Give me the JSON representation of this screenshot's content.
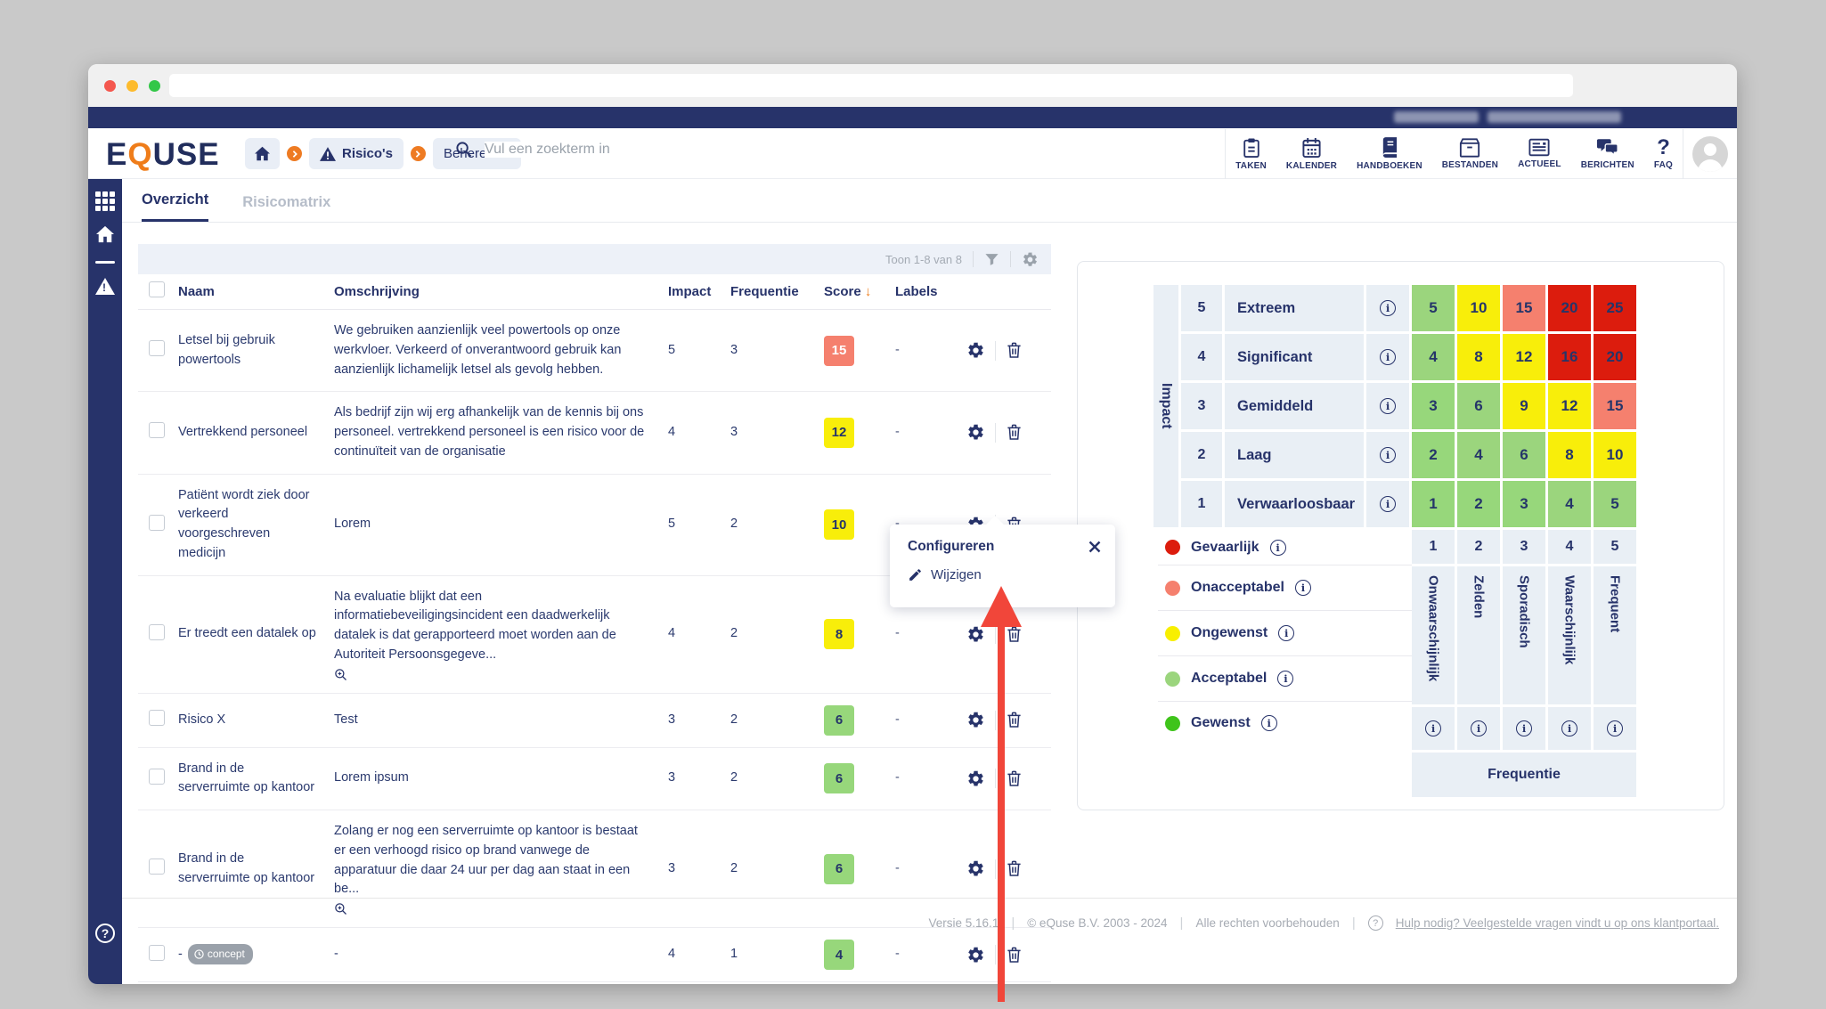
{
  "colors": {
    "navy": "#27336a",
    "orange": "#ee7b23",
    "arrow_red": "#f1463a",
    "score_salmon": "#f5806e",
    "score_yellow": "#f8ee0a",
    "score_green": "#97d77b",
    "matrix_green": "#3fc41b",
    "matrix_lgreen": "#9bd57d",
    "matrix_yellow": "#f8ef00",
    "matrix_salmon": "#f5806e",
    "matrix_red": "#dc1c0d"
  },
  "browser": {
    "lights": [
      "#f4574e",
      "#fdbb2d",
      "#33c748"
    ]
  },
  "header": {
    "logo_pre": "E",
    "logo_q": "Q",
    "logo_post": "USE",
    "breadcrumb": {
      "risicos": "Risico's",
      "beheren": "Beheren"
    },
    "search_placeholder": "Vul een zoekterm in",
    "nav_items": [
      {
        "label": "TAKEN"
      },
      {
        "label": "KALENDER"
      },
      {
        "label": "HANDBOEKEN"
      },
      {
        "label": "BESTANDEN"
      },
      {
        "label": "ACTUEEL"
      },
      {
        "label": "BERICHTEN"
      },
      {
        "label": "FAQ"
      }
    ]
  },
  "tabs": {
    "overzicht": "Overzicht",
    "risicomatrix": "Risicomatrix"
  },
  "table": {
    "toolbar_count": "Toon 1-8 van 8",
    "columns": {
      "naam": "Naam",
      "omschrijving": "Omschrijving",
      "impact": "Impact",
      "frequentie": "Frequentie",
      "score": "Score",
      "sort_arrow": "↓",
      "labels": "Labels"
    },
    "rows": [
      {
        "name": "Letsel bij gebruik powertools",
        "description": "We gebruiken aanzienlijk veel powertools op onze werkvloer. Verkeerd of onverantwoord gebruik kan aanzienlijk lichamelijk letsel als gevolg hebben.",
        "impact": "5",
        "frequency": "3",
        "score": "15",
        "score_level": "salmon",
        "labels": "-"
      },
      {
        "name": "Vertrekkend personeel",
        "description": "Als bedrijf zijn wij erg afhankelijk van de kennis bij ons personeel. vertrekkend personeel is een risico voor de continuïteit van de organisatie",
        "impact": "4",
        "frequency": "3",
        "score": "12",
        "score_level": "yellow",
        "labels": "-"
      },
      {
        "name": "Patiënt wordt ziek door verkeerd voorgeschreven medicijn",
        "description": "Lorem",
        "impact": "5",
        "frequency": "2",
        "score": "10",
        "score_level": "yellow",
        "labels": "-"
      },
      {
        "name": "Er treedt een datalek op",
        "description": "Na evaluatie blijkt dat een informatiebeveiligingsincident een daadwerkelijk datalek is dat gerapporteerd moet worden aan de Autoriteit Persoonsgegeve...",
        "truncated": true,
        "impact": "4",
        "frequency": "2",
        "score": "8",
        "score_level": "yellow",
        "labels": "-"
      },
      {
        "name": "Risico X",
        "description": "Test",
        "impact": "3",
        "frequency": "2",
        "score": "6",
        "score_level": "green",
        "labels": "-"
      },
      {
        "name": "Brand in de serverruimte op kantoor",
        "description": "Lorem ipsum",
        "impact": "3",
        "frequency": "2",
        "score": "6",
        "score_level": "green",
        "labels": "-"
      },
      {
        "name": "Brand in de serverruimte op kantoor",
        "description": "Zolang er nog een serverruimte op kantoor is bestaat er een verhoogd risico op brand vanwege de apparatuur die daar 24 uur per dag aan staat in een be...",
        "truncated": true,
        "impact": "3",
        "frequency": "2",
        "score": "6",
        "score_level": "green",
        "labels": "-"
      },
      {
        "name": "-",
        "badge": "concept",
        "description": "-",
        "impact": "4",
        "frequency": "1",
        "score": "4",
        "score_level": "green",
        "labels": "-"
      }
    ]
  },
  "popup": {
    "title": "Configureren",
    "action": "Wijzigen"
  },
  "matrix": {
    "impact_axis": "Impact",
    "frequency_axis": "Frequentie",
    "impact_levels": [
      {
        "num": "5",
        "label": "Extreem"
      },
      {
        "num": "4",
        "label": "Significant"
      },
      {
        "num": "3",
        "label": "Gemiddeld"
      },
      {
        "num": "2",
        "label": "Laag"
      },
      {
        "num": "1",
        "label": "Verwaarloosbaar"
      }
    ],
    "frequency_levels": [
      {
        "num": "1",
        "label": "Onwaarschijnlijk"
      },
      {
        "num": "2",
        "label": "Zelden"
      },
      {
        "num": "3",
        "label": "Sporadisch"
      },
      {
        "num": "4",
        "label": "Waarschijnlijk"
      },
      {
        "num": "5",
        "label": "Frequent"
      }
    ],
    "cells": [
      [
        "5",
        "10",
        "15",
        "20",
        "25"
      ],
      [
        "4",
        "8",
        "12",
        "16",
        "20"
      ],
      [
        "3",
        "6",
        "9",
        "12",
        "15"
      ],
      [
        "2",
        "4",
        "6",
        "8",
        "10"
      ],
      [
        "1",
        "2",
        "3",
        "4",
        "5"
      ]
    ],
    "cell_levels": [
      [
        "lgreen",
        "yellow",
        "salmon",
        "red",
        "red"
      ],
      [
        "lgreen",
        "yellow",
        "yellow",
        "red",
        "red"
      ],
      [
        "green",
        "lgreen",
        "yellow",
        "yellow",
        "salmon"
      ],
      [
        "green",
        "lgreen",
        "lgreen",
        "yellow",
        "yellow"
      ],
      [
        "green",
        "green",
        "green",
        "lgreen",
        "lgreen"
      ]
    ],
    "legend": [
      {
        "label": "Gevaarlijk",
        "color": "#dc1c0d"
      },
      {
        "label": "Onacceptabel",
        "color": "#f5806e"
      },
      {
        "label": "Ongewenst",
        "color": "#f8ef00"
      },
      {
        "label": "Acceptabel",
        "color": "#9bd57d"
      },
      {
        "label": "Gewenst",
        "color": "#3fc41b"
      }
    ]
  },
  "footer": {
    "version": "Versie 5.16.1",
    "copyright": "© eQuse B.V. 2003 - 2024",
    "rights": "Alle rechten voorbehouden",
    "help": "Hulp nodig? Veelgestelde vragen vindt u op ons klantportaal."
  }
}
